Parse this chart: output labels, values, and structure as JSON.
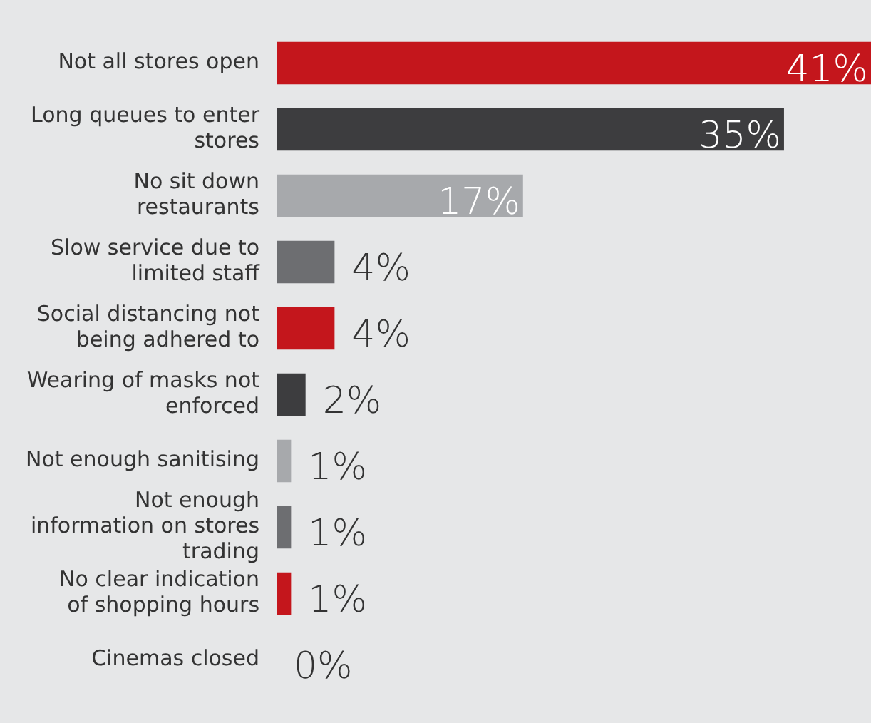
{
  "chart_data": {
    "type": "bar",
    "orientation": "horizontal",
    "categories": [
      "Not all stores open",
      "Long queues to enter stores",
      "No sit down restaurants",
      "Slow service due to limited staff",
      "Social distancing not being adhered to",
      "Wearing of masks not enforced",
      "Not enough sanitising",
      "Not enough information on stores trading",
      "No clear indication of shopping hours",
      "Cinemas closed"
    ],
    "values": [
      41,
      35,
      17,
      4,
      4,
      2,
      1,
      1,
      1,
      0
    ],
    "colors": [
      "#c4161c",
      "#3d3d3f",
      "#a7a9ac",
      "#6d6e71",
      "#c4161c",
      "#3d3d3f",
      "#a7a9ac",
      "#6d6e71",
      "#c4161c",
      "#3d3d3f"
    ],
    "value_labels": [
      "41%",
      "35%",
      "17%",
      "4%",
      "4%",
      "2%",
      "1%",
      "1%",
      "1%",
      "0%"
    ],
    "xlim": [
      0,
      41
    ],
    "tick_labels": "y",
    "grid": false,
    "legend": false
  }
}
